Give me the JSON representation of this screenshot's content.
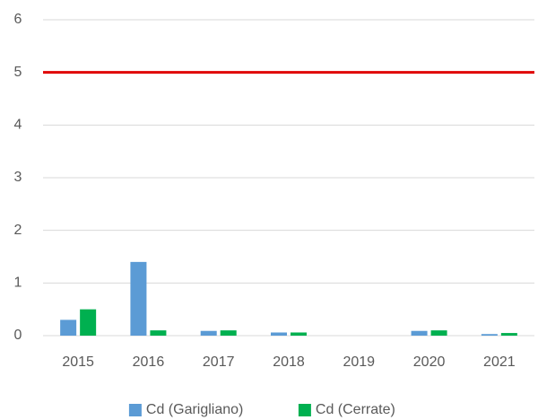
{
  "chart_data": {
    "type": "bar",
    "categories": [
      "2015",
      "2016",
      "2017",
      "2018",
      "2019",
      "2020",
      "2021"
    ],
    "series": [
      {
        "name": "Cd (Garigliano)",
        "color": "#5b9bd5",
        "values": [
          0.3,
          1.4,
          0.09,
          0.06,
          0,
          0.09,
          0.03
        ]
      },
      {
        "name": "Cd (Cerrate)",
        "color": "#00b050",
        "values": [
          0.5,
          0.1,
          0.1,
          0.06,
          0,
          0.1,
          0.05
        ]
      }
    ],
    "ylim": [
      0,
      6
    ],
    "yticks": [
      0,
      1,
      2,
      3,
      4,
      5,
      6
    ],
    "grid": true,
    "reference_line": {
      "value": 5,
      "color": "#e00000"
    },
    "legend": "bottom"
  }
}
